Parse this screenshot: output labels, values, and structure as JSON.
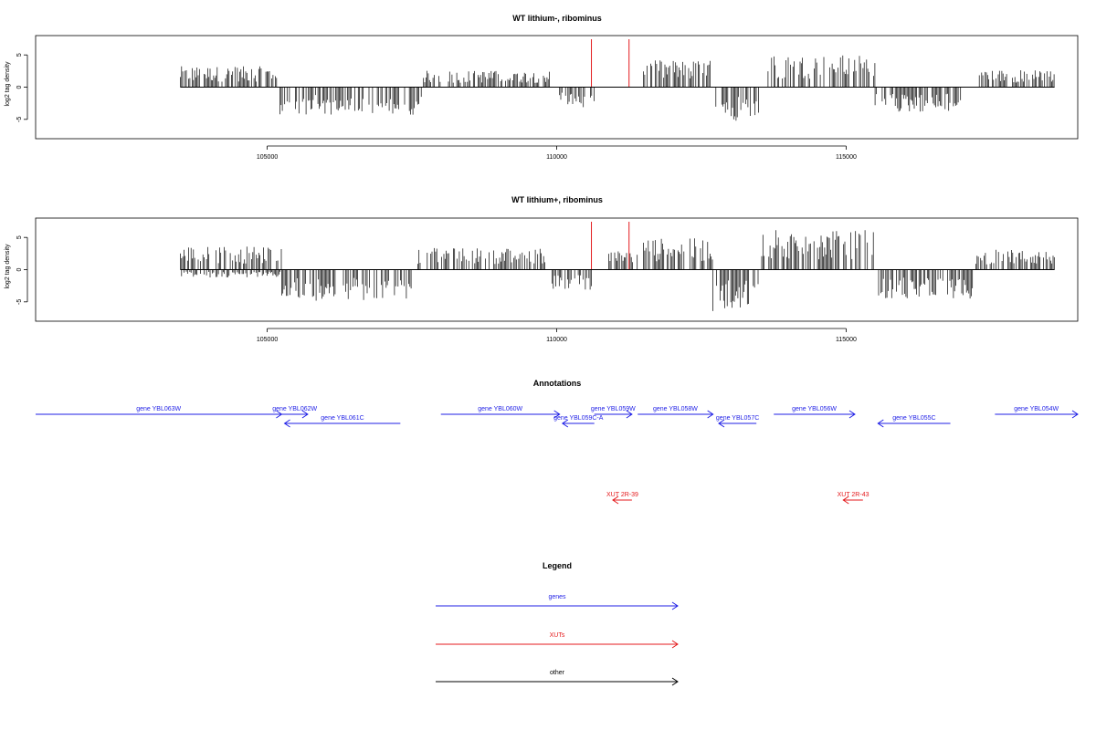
{
  "colors": {
    "trace": "#000000",
    "marker": "#e41a1c",
    "gene": "#1f1fe6",
    "xut": "#e41a1c",
    "other": "#000000"
  },
  "chart_data": [
    {
      "type": "bar",
      "title": "WT lithium-, ribominus",
      "xlabel": "",
      "ylabel": "log2 tag density",
      "xlim": [
        101000,
        119000
      ],
      "ylim": [
        -8,
        8
      ],
      "xticks": [
        105000,
        110000,
        115000
      ],
      "yticks": [
        5,
        0,
        -5
      ],
      "ytick_labels": [
        "5",
        "0",
        "-5"
      ],
      "grid": false,
      "marker_lines": [
        110600,
        111250
      ],
      "coverage_segments": [
        {
          "start": 103500,
          "end": 105200,
          "strand": "+",
          "level": 2.4
        },
        {
          "start": 105200,
          "end": 107700,
          "strand": "-",
          "level": 3.2
        },
        {
          "start": 107700,
          "end": 109900,
          "strand": "+",
          "level": 1.9
        },
        {
          "start": 110050,
          "end": 110650,
          "strand": "-",
          "level": 2.3
        },
        {
          "start": 111500,
          "end": 112650,
          "strand": "+",
          "level": 3.1
        },
        {
          "start": 112750,
          "end": 113500,
          "strand": "-",
          "level": 4.2
        },
        {
          "start": 113650,
          "end": 115500,
          "strand": "+",
          "level": 3.7
        },
        {
          "start": 115500,
          "end": 117000,
          "strand": "-",
          "level": 2.9
        },
        {
          "start": 117300,
          "end": 118600,
          "strand": "+",
          "level": 2.0
        }
      ]
    },
    {
      "type": "bar",
      "title": "WT lithium+, ribominus",
      "xlabel": "",
      "ylabel": "log2 tag density",
      "xlim": [
        101000,
        119000
      ],
      "ylim": [
        -8,
        8
      ],
      "xticks": [
        105000,
        110000,
        115000
      ],
      "yticks": [
        5,
        0,
        -5
      ],
      "ytick_labels": [
        "5",
        "0",
        "-5"
      ],
      "grid": false,
      "marker_lines": [
        110600,
        111250
      ],
      "coverage_segments": [
        {
          "start": 103500,
          "end": 105250,
          "strand": "+",
          "level": 2.7
        },
        {
          "start": 103500,
          "end": 105250,
          "strand": "-",
          "level": 0.9
        },
        {
          "start": 105250,
          "end": 107500,
          "strand": "-",
          "level": 3.6
        },
        {
          "start": 107600,
          "end": 109800,
          "strand": "+",
          "level": 2.5
        },
        {
          "start": 109900,
          "end": 110600,
          "strand": "-",
          "level": 2.4
        },
        {
          "start": 110900,
          "end": 111400,
          "strand": "+",
          "level": 2.2
        },
        {
          "start": 111500,
          "end": 112700,
          "strand": "+",
          "level": 3.6
        },
        {
          "start": 112700,
          "end": 113500,
          "strand": "-",
          "level": 4.8
        },
        {
          "start": 113500,
          "end": 115500,
          "strand": "+",
          "level": 4.6
        },
        {
          "start": 115500,
          "end": 117200,
          "strand": "-",
          "level": 3.4
        },
        {
          "start": 117200,
          "end": 118600,
          "strand": "+",
          "level": 2.3
        }
      ]
    }
  ],
  "annotations": {
    "title": "Annotations",
    "features": [
      {
        "label": "gene YBL063W",
        "type": "gene",
        "start": 101000,
        "end": 105250,
        "strand": "+",
        "row": 1
      },
      {
        "label": "gene YBL062W",
        "type": "gene",
        "start": 105250,
        "end": 105700,
        "strand": "+",
        "row": 1
      },
      {
        "label": "gene YBL061C",
        "type": "gene",
        "start": 105300,
        "end": 107300,
        "strand": "-",
        "row": 2
      },
      {
        "label": "gene YBL060W",
        "type": "gene",
        "start": 108000,
        "end": 110050,
        "strand": "+",
        "row": 1
      },
      {
        "label": "gene YBL059C-A",
        "type": "gene",
        "start": 110100,
        "end": 110650,
        "strand": "-",
        "row": 2
      },
      {
        "label": "gene YBL059W",
        "type": "gene",
        "start": 110650,
        "end": 111300,
        "strand": "+",
        "row": 1
      },
      {
        "label": "gene YBL058W",
        "type": "gene",
        "start": 111400,
        "end": 112700,
        "strand": "+",
        "row": 1
      },
      {
        "label": "gene YBL057C",
        "type": "gene",
        "start": 112800,
        "end": 113450,
        "strand": "-",
        "row": 2
      },
      {
        "label": "gene YBL056W",
        "type": "gene",
        "start": 113750,
        "end": 115150,
        "strand": "+",
        "row": 1
      },
      {
        "label": "gene YBL055C",
        "type": "gene",
        "start": 115550,
        "end": 116800,
        "strand": "-",
        "row": 2
      },
      {
        "label": "gene YBL054W",
        "type": "gene",
        "start": 117570,
        "end": 119000,
        "strand": "+",
        "row": 1
      },
      {
        "label": "XUT 2R-39",
        "type": "xut",
        "start": 110970,
        "end": 111300,
        "strand": "-",
        "row": 3
      },
      {
        "label": "XUT 2R-43",
        "type": "xut",
        "start": 114950,
        "end": 115290,
        "strand": "-",
        "row": 3
      }
    ]
  },
  "legend": {
    "title": "Legend",
    "items": [
      {
        "label": "genes",
        "type": "gene"
      },
      {
        "label": "XUTs",
        "type": "xut"
      },
      {
        "label": "other",
        "type": "other"
      }
    ]
  }
}
